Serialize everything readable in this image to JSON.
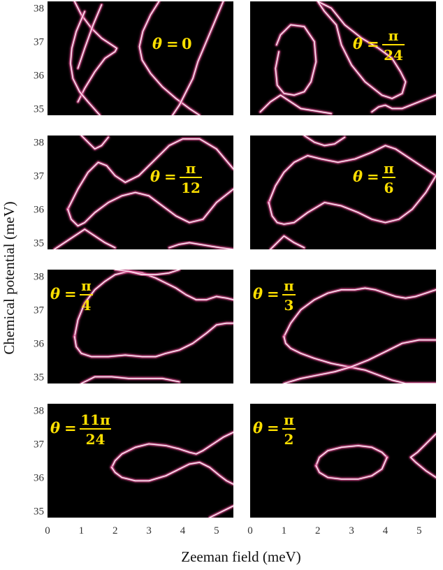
{
  "chart_data": {
    "type": "line",
    "xlabel": "Zeeman field (meV)",
    "ylabel": "Chemical potential (meV)",
    "xlim": [
      0,
      5.5
    ],
    "ylim": [
      34.8,
      38.2
    ],
    "x_ticks": [
      "0",
      "1",
      "2",
      "3",
      "4",
      "5"
    ],
    "y_ticks": [
      "35",
      "36",
      "37",
      "38"
    ],
    "colors": {
      "background": "#000000",
      "line": "#ffe8f4",
      "glow": "#d9488c",
      "label": "#ffe000"
    },
    "panels": [
      {
        "id": "p0",
        "label": {
          "var": "θ",
          "eq": "=",
          "num": "0",
          "den": ""
        },
        "series": [
          {
            "x": [
              0.8,
              1.0,
              1.3,
              1.6,
              1.9,
              2.05,
              2.0,
              1.7,
              1.4,
              1.1,
              0.9
            ],
            "y": [
              38.2,
              37.8,
              37.4,
              37.1,
              36.9,
              36.8,
              36.7,
              36.5,
              36.1,
              35.6,
              35.2
            ]
          },
          {
            "x": [
              1.1,
              0.85,
              0.72,
              0.68,
              0.75,
              0.95,
              1.2,
              1.55
            ],
            "y": [
              37.9,
              37.3,
              36.8,
              36.35,
              35.9,
              35.5,
              35.2,
              34.8
            ]
          },
          {
            "x": [
              3.3,
              3.05,
              2.82,
              2.72,
              2.8,
              3.05,
              3.4,
              3.8,
              4.2,
              4.5
            ],
            "y": [
              38.2,
              37.8,
              37.3,
              36.85,
              36.45,
              36.05,
              35.65,
              35.3,
              35.0,
              34.8
            ]
          },
          {
            "x": [
              5.2,
              4.95,
              4.7,
              4.45,
              4.3,
              4.1,
              3.9,
              3.7
            ],
            "y": [
              38.2,
              37.6,
              37.0,
              36.4,
              35.9,
              35.5,
              35.1,
              34.8
            ]
          },
          {
            "x": [
              1.6,
              1.35,
              1.1,
              0.9
            ],
            "y": [
              38.1,
              37.5,
              36.8,
              36.2
            ]
          }
        ]
      },
      {
        "id": "p1",
        "label": {
          "var": "θ",
          "eq": "=",
          "num": "π",
          "den": "24"
        },
        "series": [
          {
            "x": [
              0.85,
              0.75,
              0.8,
              1.0,
              1.3,
              1.6,
              1.8,
              1.95,
              1.9,
              1.6,
              1.2,
              0.9,
              0.78
            ],
            "y": [
              36.7,
              36.2,
              35.7,
              35.45,
              35.4,
              35.5,
              35.8,
              36.4,
              37.0,
              37.45,
              37.5,
              37.2,
              36.9
            ]
          },
          {
            "x": [
              2.0,
              2.4,
              2.8,
              3.3,
              3.8,
              4.2,
              4.45,
              4.6,
              4.5,
              4.2,
              3.9,
              3.4,
              3.0,
              2.7,
              2.55,
              2.2,
              2.0
            ],
            "y": [
              38.2,
              38.0,
              37.5,
              37.1,
              36.8,
              36.5,
              36.1,
              35.8,
              35.45,
              35.3,
              35.4,
              35.8,
              36.3,
              36.9,
              37.5,
              37.9,
              38.2
            ]
          },
          {
            "x": [
              0.3,
              0.6,
              0.9,
              1.2,
              1.5,
              1.8,
              2.1,
              2.4
            ],
            "y": [
              34.9,
              35.2,
              35.4,
              35.2,
              35.0,
              34.95,
              34.9,
              34.85
            ]
          },
          {
            "x": [
              3.6,
              3.8,
              4.0,
              4.2,
              4.5,
              5.0,
              5.5
            ],
            "y": [
              34.9,
              35.05,
              35.1,
              35.0,
              35.0,
              35.2,
              35.4
            ]
          }
        ]
      },
      {
        "id": "p2",
        "label": {
          "var": "θ",
          "eq": "=",
          "num": "π",
          "den": "12"
        },
        "series": [
          {
            "x": [
              0.6,
              0.9,
              1.2,
              1.5,
              1.75,
              2.0,
              2.3,
              2.7,
              3.2,
              3.6,
              4.0,
              4.5,
              5.0,
              5.5
            ],
            "y": [
              36.0,
              36.6,
              37.1,
              37.4,
              37.3,
              37.0,
              36.8,
              37.0,
              37.5,
              37.9,
              38.1,
              38.1,
              37.8,
              37.2
            ]
          },
          {
            "x": [
              0.6,
              0.7,
              0.9,
              1.1,
              1.4,
              1.8,
              2.2,
              2.6,
              3.0,
              3.4,
              3.8,
              4.2,
              4.6,
              5.0,
              5.5
            ],
            "y": [
              36.0,
              35.7,
              35.5,
              35.6,
              35.9,
              36.2,
              36.4,
              36.5,
              36.4,
              36.1,
              35.8,
              35.6,
              35.7,
              36.2,
              36.6
            ]
          },
          {
            "x": [
              0.2,
              0.5,
              0.8,
              1.1,
              1.4,
              1.7,
              2.0
            ],
            "y": [
              34.8,
              35.0,
              35.2,
              35.4,
              35.2,
              35.0,
              34.85
            ]
          },
          {
            "x": [
              3.6,
              3.9,
              4.2,
              4.5,
              4.8,
              5.1,
              5.5
            ],
            "y": [
              34.85,
              34.95,
              35.0,
              34.95,
              34.9,
              34.85,
              34.8
            ]
          },
          {
            "x": [
              1.0,
              1.2,
              1.4,
              1.6,
              1.8
            ],
            "y": [
              38.2,
              38.0,
              37.8,
              37.9,
              38.15
            ]
          }
        ]
      },
      {
        "id": "p3",
        "label": {
          "var": "θ",
          "eq": "=",
          "num": "π",
          "den": "6"
        },
        "series": [
          {
            "x": [
              0.55,
              0.75,
              1.0,
              1.3,
              1.7,
              2.1,
              2.6,
              3.1,
              3.6,
              4.0,
              4.3,
              4.6,
              4.9,
              5.2,
              5.5
            ],
            "y": [
              36.2,
              36.7,
              37.1,
              37.4,
              37.6,
              37.5,
              37.4,
              37.5,
              37.7,
              37.9,
              37.8,
              37.6,
              37.4,
              37.2,
              37.0
            ]
          },
          {
            "x": [
              0.55,
              0.65,
              0.8,
              1.0,
              1.3,
              1.7,
              2.2,
              2.7,
              3.2,
              3.6,
              4.0,
              4.4,
              4.8,
              5.2,
              5.5
            ],
            "y": [
              36.2,
              35.8,
              35.6,
              35.55,
              35.6,
              35.9,
              36.2,
              36.1,
              35.9,
              35.7,
              35.6,
              35.7,
              36.0,
              36.5,
              37.0
            ]
          },
          {
            "x": [
              0.6,
              0.8,
              1.0,
              1.3,
              1.6
            ],
            "y": [
              34.8,
              35.0,
              35.2,
              35.0,
              34.85
            ]
          },
          {
            "x": [
              1.6,
              1.9,
              2.2,
              2.5,
              2.8
            ],
            "y": [
              38.2,
              38.0,
              37.9,
              37.95,
              38.15
            ]
          }
        ]
      },
      {
        "id": "p4",
        "label": {
          "var": "θ",
          "eq": "=",
          "num": "π",
          "den": "4"
        },
        "series": [
          {
            "x": [
              0.8,
              0.9,
              1.1,
              1.4,
              1.7,
              2.0,
              2.4,
              2.8,
              3.2,
              3.5,
              3.8,
              4.1,
              4.4,
              4.7,
              5.0,
              5.3,
              5.5
            ],
            "y": [
              36.2,
              36.7,
              37.2,
              37.6,
              37.85,
              38.05,
              38.15,
              38.1,
              37.95,
              37.8,
              37.65,
              37.45,
              37.3,
              37.3,
              37.4,
              37.35,
              37.3
            ]
          },
          {
            "x": [
              0.8,
              0.85,
              1.0,
              1.3,
              1.8,
              2.3,
              2.8,
              3.2,
              3.5,
              3.9,
              4.3,
              4.7,
              5.0,
              5.3,
              5.5
            ],
            "y": [
              36.2,
              35.9,
              35.7,
              35.6,
              35.6,
              35.65,
              35.6,
              35.6,
              35.7,
              35.8,
              36.0,
              36.3,
              36.55,
              36.6,
              36.6
            ]
          },
          {
            "x": [
              2.0,
              2.4,
              2.8,
              3.2,
              3.6,
              3.9
            ],
            "y": [
              38.2,
              38.15,
              38.05,
              38.05,
              38.1,
              38.2
            ]
          },
          {
            "x": [
              1.0,
              1.4,
              1.9,
              2.4,
              2.9,
              3.4,
              3.9
            ],
            "y": [
              34.8,
              35.0,
              35.0,
              34.95,
              34.95,
              34.95,
              34.85
            ]
          }
        ]
      },
      {
        "id": "p5",
        "label": {
          "var": "θ",
          "eq": "=",
          "num": "π",
          "den": "3"
        },
        "series": [
          {
            "x": [
              1.0,
              1.2,
              1.5,
              1.9,
              2.3,
              2.7,
              3.1,
              3.4,
              3.7,
              4.0,
              4.3,
              4.6,
              4.9,
              5.2,
              5.5
            ],
            "y": [
              36.2,
              36.6,
              37.0,
              37.3,
              37.5,
              37.6,
              37.6,
              37.65,
              37.6,
              37.5,
              37.4,
              37.35,
              37.4,
              37.5,
              37.6
            ]
          },
          {
            "x": [
              1.0,
              1.05,
              1.2,
              1.5,
              1.9,
              2.4,
              2.9,
              3.4,
              3.8,
              4.2,
              4.6,
              5.0,
              5.3,
              5.5
            ],
            "y": [
              36.2,
              36.0,
              35.85,
              35.7,
              35.55,
              35.4,
              35.3,
              35.2,
              35.05,
              34.9,
              34.8,
              34.8,
              34.8,
              34.8
            ]
          },
          {
            "x": [
              1.0,
              1.5,
              2.0,
              2.5,
              3.0,
              3.5,
              4.0,
              4.5,
              5.0,
              5.5
            ],
            "y": [
              34.8,
              34.95,
              35.05,
              35.15,
              35.3,
              35.5,
              35.75,
              36.0,
              36.1,
              36.1
            ]
          }
        ]
      },
      {
        "id": "p6",
        "label": {
          "var": "θ",
          "eq": "=",
          "num": "11π",
          "den": "24"
        },
        "series": [
          {
            "x": [
              1.9,
              2.0,
              2.2,
              2.6,
              3.0,
              3.5,
              3.9,
              4.2,
              4.4,
              4.6,
              4.9,
              5.2,
              5.5
            ],
            "y": [
              36.3,
              36.5,
              36.7,
              36.9,
              37.0,
              36.95,
              36.85,
              36.75,
              36.7,
              36.8,
              37.0,
              37.2,
              37.35
            ]
          },
          {
            "x": [
              1.9,
              2.0,
              2.2,
              2.6,
              3.0,
              3.5,
              3.9,
              4.2,
              4.5,
              4.8,
              5.1,
              5.3,
              5.5
            ],
            "y": [
              36.3,
              36.15,
              36.0,
              35.9,
              35.9,
              36.05,
              36.25,
              36.4,
              36.45,
              36.3,
              36.05,
              35.9,
              35.8
            ]
          },
          {
            "x": [
              4.8,
              5.0,
              5.2,
              5.4,
              5.5
            ],
            "y": [
              34.8,
              34.9,
              35.0,
              35.1,
              35.15
            ]
          }
        ]
      },
      {
        "id": "p7",
        "label": {
          "var": "θ",
          "eq": "=",
          "num": "π",
          "den": "2"
        },
        "series": [
          {
            "x": [
              1.95,
              2.05,
              2.3,
              2.7,
              3.2,
              3.6,
              3.9,
              4.05
            ],
            "y": [
              36.35,
              36.6,
              36.8,
              36.9,
              36.95,
              36.9,
              36.75,
              36.6
            ]
          },
          {
            "x": [
              1.95,
              2.05,
              2.3,
              2.7,
              3.2,
              3.6,
              3.9,
              4.05
            ],
            "y": [
              36.35,
              36.15,
              36.0,
              35.95,
              35.95,
              36.05,
              36.25,
              36.6
            ]
          },
          {
            "x": [
              5.5,
              5.2,
              4.95,
              4.75,
              4.9,
              5.2,
              5.5
            ],
            "y": [
              37.3,
              37.0,
              36.75,
              36.6,
              36.45,
              36.2,
              36.0
            ]
          }
        ]
      }
    ]
  }
}
